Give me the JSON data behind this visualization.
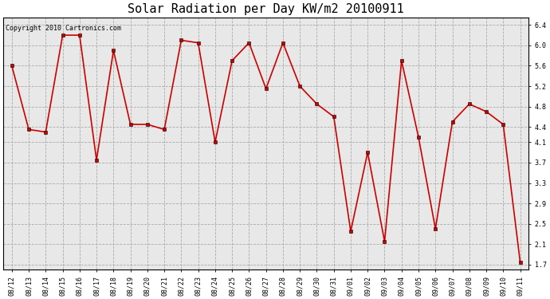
{
  "title": "Solar Radiation per Day KW/m2 20100911",
  "copyright": "Copyright 2010 Cartronics.com",
  "dates": [
    "08/12",
    "08/13",
    "08/14",
    "08/15",
    "08/16",
    "08/17",
    "08/18",
    "08/19",
    "08/20",
    "08/21",
    "08/22",
    "08/23",
    "08/24",
    "08/25",
    "08/26",
    "08/27",
    "08/28",
    "08/29",
    "08/30",
    "08/31",
    "09/01",
    "09/02",
    "09/03",
    "09/04",
    "09/05",
    "09/06",
    "09/07",
    "09/08",
    "09/09",
    "09/10",
    "09/11"
  ],
  "values": [
    5.6,
    4.35,
    4.3,
    6.2,
    6.2,
    3.75,
    5.9,
    4.45,
    4.45,
    4.35,
    6.1,
    6.05,
    4.1,
    5.7,
    6.05,
    5.15,
    6.05,
    5.2,
    4.85,
    4.6,
    2.35,
    3.9,
    2.15,
    5.7,
    4.2,
    2.4,
    4.5,
    4.85,
    4.7,
    4.45,
    1.75
  ],
  "line_color": "#cc0000",
  "marker": "s",
  "marker_size": 2.5,
  "line_width": 1.2,
  "bg_color": "#ffffff",
  "plot_bg_color": "#e8e8e8",
  "grid_color": "#aaaaaa",
  "grid_style": "--",
  "ylim": [
    1.6,
    6.55
  ],
  "yticks": [
    1.7,
    2.1,
    2.5,
    2.9,
    3.3,
    3.7,
    4.1,
    4.4,
    4.8,
    5.2,
    5.6,
    6.0,
    6.4
  ],
  "title_fontsize": 11,
  "tick_fontsize": 6,
  "copyright_fontsize": 6
}
